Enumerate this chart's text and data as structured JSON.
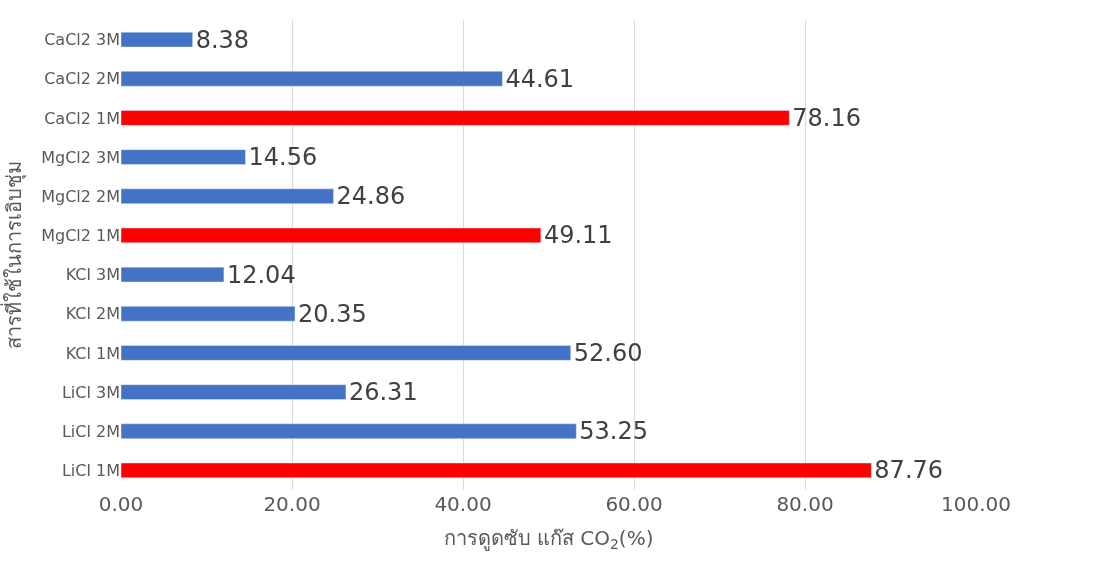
{
  "chart_data": {
    "type": "bar",
    "orientation": "horizontal",
    "xlabel": "การดูดซับ แก๊ส CO$_{2}$(%)",
    "ylabel": "สารที่ใช้ในการเอิบชุ่ม",
    "categories": [
      "CaCl2 3M",
      "CaCl2 2M",
      "CaCl2 1M",
      "MgCl2 3M",
      "MgCl2 2M",
      "MgCl2 1M",
      "KCl 3M",
      "KCl 2M",
      "KCl 1M",
      "LiCl 3M",
      "LiCl 2M",
      "LiCl 1M"
    ],
    "values": [
      8.38,
      44.61,
      78.16,
      14.56,
      24.86,
      49.11,
      12.04,
      20.35,
      52.6,
      26.31,
      53.25,
      87.76
    ],
    "value_labels": [
      "8.38",
      "44.61",
      "78.16",
      "14.56",
      "24.86",
      "49.11",
      "12.04",
      "20.35",
      "52.60",
      "26.31",
      "53.25",
      "87.76"
    ],
    "colors": [
      "#4472c4",
      "#4472c4",
      "#ff0000",
      "#4472c4",
      "#4472c4",
      "#ff0000",
      "#4472c4",
      "#4472c4",
      "#4472c4",
      "#4472c4",
      "#4472c4",
      "#ff0000"
    ],
    "xlim": [
      0,
      100
    ],
    "xticks": [
      {
        "value": 0,
        "label": "0.00"
      },
      {
        "value": 20,
        "label": "20.00"
      },
      {
        "value": 40,
        "label": "40.00"
      },
      {
        "value": 60,
        "label": "60.00"
      },
      {
        "value": 80,
        "label": "80.00"
      },
      {
        "value": 100,
        "label": "100.00"
      }
    ],
    "grid": "x"
  }
}
